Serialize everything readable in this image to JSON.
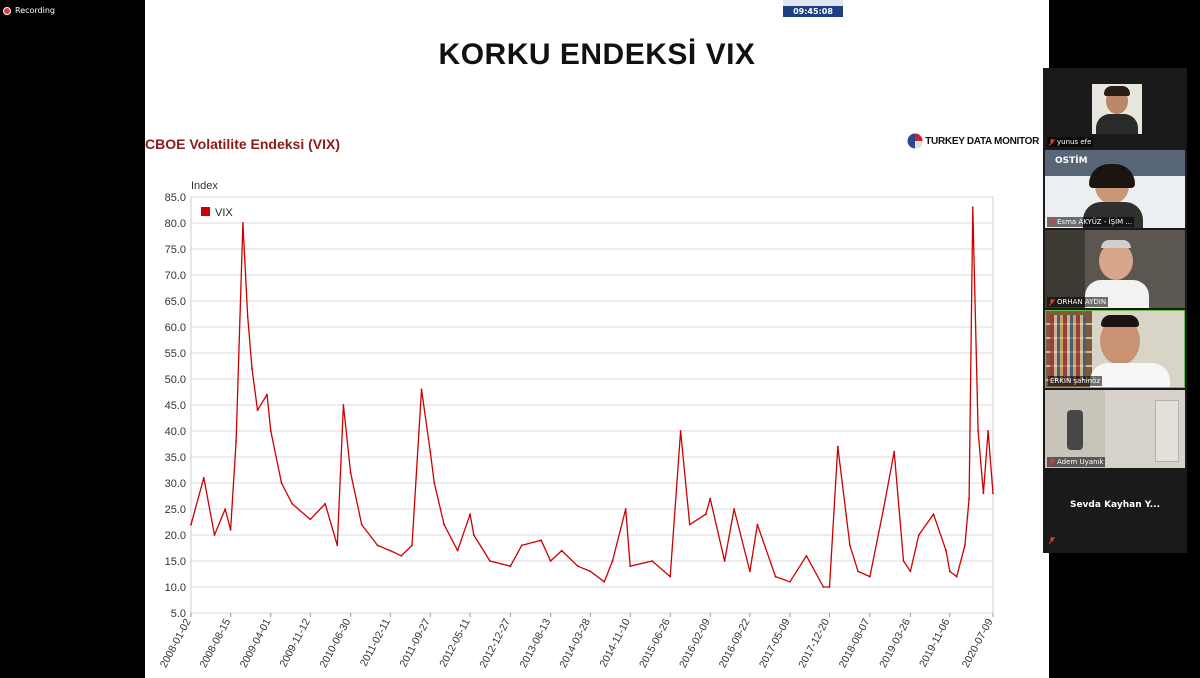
{
  "recording": {
    "label": "Recording"
  },
  "clock": {
    "time": "09:45:08"
  },
  "slide": {
    "title": "KORKU ENDEKSİ VIX",
    "chart_title": "CBOE Volatilite Endeksi (VIX)",
    "brand": "TURKEY DATA MONITOR"
  },
  "chart_data": {
    "type": "line",
    "ylabel": "Index",
    "ylim": [
      5,
      85
    ],
    "yticks": [
      "85.0",
      "80.0",
      "75.0",
      "70.0",
      "65.0",
      "60.0",
      "55.0",
      "50.0",
      "45.0",
      "40.0",
      "35.0",
      "30.0",
      "25.0",
      "20.0",
      "15.0",
      "10.0",
      "5.0"
    ],
    "x_ticks": [
      "2008-01-02",
      "2008-08-15",
      "2009-04-01",
      "2009-11-12",
      "2010-06-30",
      "2011-02-11",
      "2011-09-27",
      "2012-05-11",
      "2012-12-27",
      "2013-08-13",
      "2014-03-28",
      "2014-11-10",
      "2015-06-26",
      "2016-02-09",
      "2016-09-22",
      "2017-05-09",
      "2017-12-20",
      "2018-08-07",
      "2019-03-26",
      "2019-11-06",
      "2020-07-09"
    ],
    "legend": "top-left",
    "grid": true,
    "color": "#cc0000",
    "series": [
      {
        "name": "VIX",
        "x": [
          "2008-01-02",
          "2008-03-15",
          "2008-05-15",
          "2008-07-15",
          "2008-08-15",
          "2008-09-15",
          "2008-10-24",
          "2008-11-20",
          "2008-12-15",
          "2009-01-15",
          "2009-03-10",
          "2009-04-01",
          "2009-06-01",
          "2009-08-01",
          "2009-11-12",
          "2010-02-05",
          "2010-04-15",
          "2010-05-20",
          "2010-06-30",
          "2010-09-01",
          "2010-12-01",
          "2011-02-11",
          "2011-04-15",
          "2011-06-15",
          "2011-08-08",
          "2011-09-27",
          "2011-10-20",
          "2011-12-15",
          "2012-03-01",
          "2012-05-11",
          "2012-06-01",
          "2012-09-01",
          "2012-12-27",
          "2013-03-01",
          "2013-06-20",
          "2013-08-13",
          "2013-10-15",
          "2014-01-15",
          "2014-03-28",
          "2014-06-15",
          "2014-08-01",
          "2014-10-15",
          "2014-11-10",
          "2015-03-15",
          "2015-06-26",
          "2015-08-24",
          "2015-10-15",
          "2016-01-15",
          "2016-02-09",
          "2016-05-01",
          "2016-06-24",
          "2016-09-22",
          "2016-11-04",
          "2017-02-15",
          "2017-05-09",
          "2017-08-10",
          "2017-11-15",
          "2017-12-20",
          "2018-02-05",
          "2018-04-15",
          "2018-06-01",
          "2018-08-07",
          "2018-10-24",
          "2018-12-24",
          "2019-02-15",
          "2019-03-26",
          "2019-05-13",
          "2019-08-05",
          "2019-10-15",
          "2019-11-06",
          "2019-12-15",
          "2020-01-31",
          "2020-02-24",
          "2020-03-16",
          "2020-04-15",
          "2020-05-15",
          "2020-06-11",
          "2020-07-09"
        ],
        "values": [
          22,
          31,
          20,
          25,
          21,
          38,
          80,
          62,
          52,
          44,
          47,
          40,
          30,
          26,
          23,
          26,
          18,
          45,
          32,
          22,
          18,
          17,
          16,
          18,
          48,
          36,
          30,
          22,
          17,
          24,
          20,
          15,
          14,
          18,
          19,
          15,
          17,
          14,
          13,
          11,
          15,
          25,
          14,
          15,
          12,
          40,
          22,
          24,
          27,
          15,
          25,
          13,
          22,
          12,
          11,
          16,
          10,
          10,
          37,
          18,
          13,
          12,
          25,
          36,
          15,
          13,
          20,
          24,
          17,
          13,
          12,
          18,
          27,
          83,
          40,
          28,
          40,
          28
        ]
      }
    ]
  },
  "participants": [
    {
      "name": "yunus efe"
    },
    {
      "name": "Esma AKYÜZ - İŞİM ..."
    },
    {
      "name": "ORHAN AYDIN"
    },
    {
      "name": "ERKİN şahinöz"
    },
    {
      "name": "Adem Uyanık"
    },
    {
      "name": "Sevda  Kayhan  Y..."
    }
  ],
  "colors": {
    "line": "#cc0000",
    "title_red": "#8b1a1a",
    "clock_bg": "#1d3f86"
  }
}
